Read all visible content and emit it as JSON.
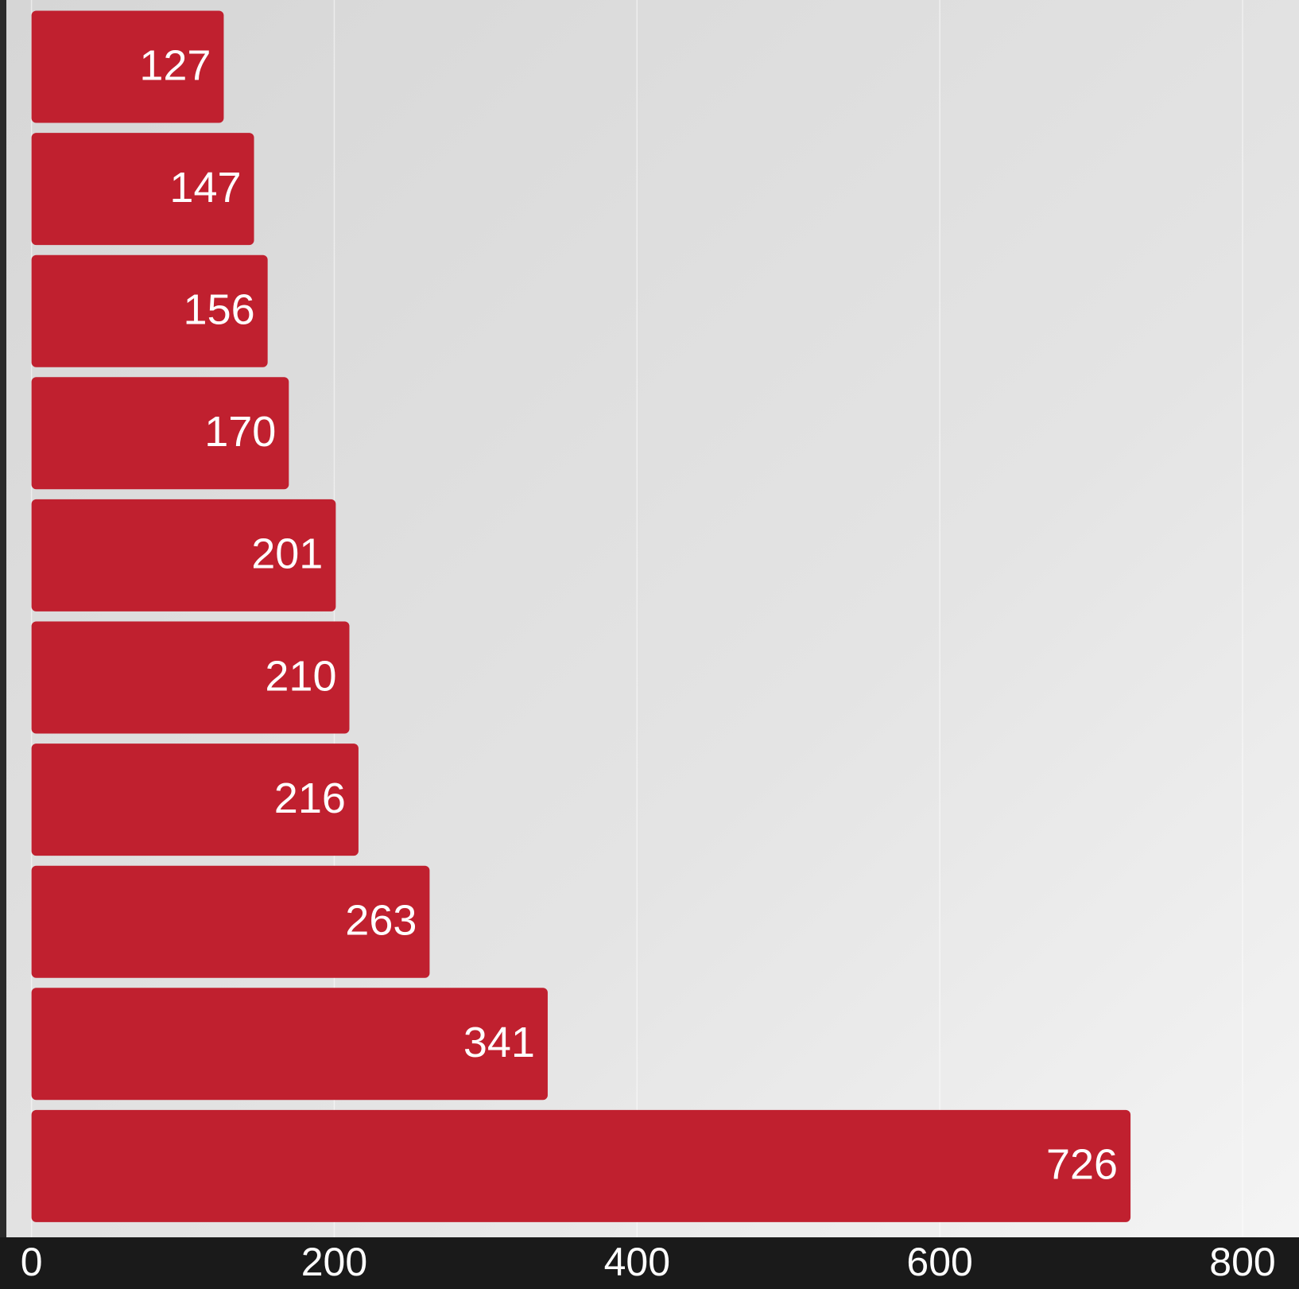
{
  "chart_data": {
    "type": "bar",
    "orientation": "horizontal",
    "categories": [
      null,
      null,
      null,
      null,
      null,
      null,
      null,
      null,
      null,
      null
    ],
    "values": [
      127,
      147,
      156,
      170,
      201,
      210,
      216,
      263,
      341,
      726
    ],
    "color": "#c0202f",
    "xlim": [
      0,
      800
    ],
    "xticks": [
      0,
      200,
      400,
      600,
      800
    ],
    "grid": true
  }
}
